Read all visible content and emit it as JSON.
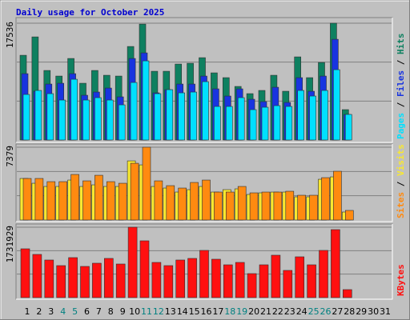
{
  "chart_data": [
    {
      "type": "bar",
      "title": "Daily usage for October 2025",
      "ylim": [
        0,
        17536
      ],
      "yticks": [
        17536
      ],
      "legend_separator": " / ",
      "series": [
        {
          "name": "Hits",
          "color": "#0e8060",
          "values": [
            12720,
            15480,
            10440,
            9600,
            12240,
            8520,
            10440,
            9720,
            9600,
            14040,
            17400,
            10320,
            10320,
            11400,
            11520,
            12360,
            10080,
            9360,
            8040,
            6960,
            7440,
            9720,
            7320,
            12480,
            9360,
            11640,
            17536,
            4560,
            null,
            null,
            null
          ]
        },
        {
          "name": "Files",
          "color": "#1834e0",
          "values": [
            9960,
            7320,
            8400,
            8520,
            9960,
            6720,
            7200,
            7800,
            6480,
            12240,
            13080,
            7080,
            7560,
            8400,
            8400,
            9600,
            7680,
            6600,
            7680,
            6120,
            5760,
            7920,
            5640,
            9360,
            7320,
            9600,
            15120,
            3840,
            null,
            null,
            null
          ]
        },
        {
          "name": "Pages",
          "color": "#00e0ff",
          "values": [
            6840,
            7440,
            6960,
            6000,
            9120,
            6000,
            6360,
            6000,
            5280,
            8640,
            11880,
            6960,
            7560,
            7080,
            7200,
            8760,
            5040,
            5040,
            6360,
            4560,
            4920,
            5160,
            5040,
            7440,
            6600,
            7440,
            10560,
            3840,
            null,
            null,
            null
          ]
        }
      ]
    },
    {
      "type": "bar",
      "ylim": [
        0,
        7379
      ],
      "yticks": [
        7379
      ],
      "legend_separator": " / ",
      "series": [
        {
          "name": "Visits",
          "color": "#f8e830",
          "values": [
            4212,
            3726,
            3402,
            3402,
            4050,
            3402,
            3564,
            3402,
            3402,
            5994,
            5589,
            3402,
            3240,
            2835,
            3078,
            3402,
            2835,
            3078,
            3159,
            2592,
            2754,
            2835,
            2835,
            2349,
            2349,
            4131,
            4374,
            810,
            null,
            null,
            null
          ]
        },
        {
          "name": "Sites",
          "color": "#ff8a10",
          "values": [
            4212,
            4212,
            3888,
            3888,
            4617,
            3969,
            4536,
            3888,
            3726,
            5751,
            7379,
            3969,
            3483,
            3240,
            3807,
            4050,
            2835,
            2835,
            3402,
            2754,
            2835,
            2835,
            2916,
            2511,
            2511,
            4293,
            4941,
            972,
            null,
            null,
            null
          ]
        }
      ]
    },
    {
      "type": "bar",
      "ylim": [
        0,
        1731929
      ],
      "yticks": [
        1731929
      ],
      "categories": [
        "1",
        "2",
        "3",
        "4",
        "5",
        "6",
        "7",
        "8",
        "9",
        "10",
        "11",
        "12",
        "13",
        "14",
        "15",
        "16",
        "17",
        "18",
        "19",
        "20",
        "21",
        "22",
        "23",
        "24",
        "25",
        "26",
        "27",
        "28",
        "29",
        "30",
        "31"
      ],
      "category_colors": [
        "#000",
        "#000",
        "#000",
        "#008080",
        "#008080",
        "#000",
        "#000",
        "#000",
        "#000",
        "#000",
        "#008080",
        "#008080",
        "#000",
        "#000",
        "#000",
        "#000",
        "#000",
        "#008080",
        "#008080",
        "#000",
        "#000",
        "#000",
        "#000",
        "#000",
        "#008080",
        "#008080",
        "#000",
        "#000",
        "#000",
        "#000",
        "#000"
      ],
      "series": [
        {
          "name": "KBytes",
          "color": "#ff1010",
          "values": [
            1200541,
            1062774,
            925007,
            787240,
            984050,
            767559,
            846283,
            964369,
            826602,
            1731929,
            1397351,
            865964,
            787240,
            925007,
            964369,
            1161179,
            944688,
            806921,
            865964,
            590430,
            806921,
            1043093,
            669154,
            1003731,
            806921,
            1161179,
            1672885,
            196810,
            null,
            null,
            null
          ]
        }
      ]
    }
  ]
}
